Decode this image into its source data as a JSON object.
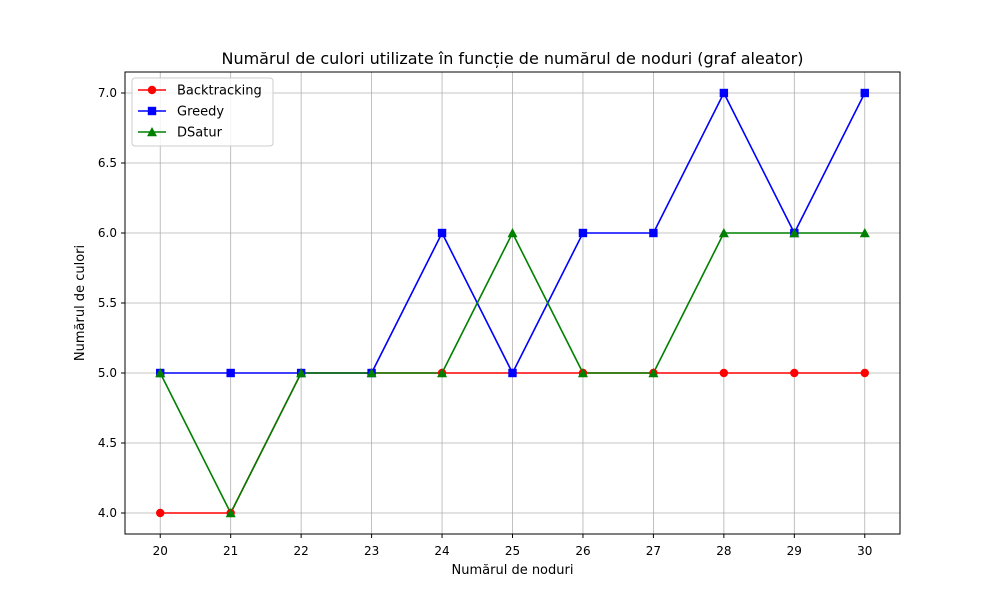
{
  "chart_data": {
    "type": "line",
    "title": "Numărul de culori utilizate în funcție de numărul de noduri (graf aleator)",
    "xlabel": "Numărul de noduri",
    "ylabel": "Numărul de culori",
    "x": [
      20,
      21,
      22,
      23,
      24,
      25,
      26,
      27,
      28,
      29,
      30
    ],
    "xlim": [
      19.5,
      30.5
    ],
    "ylim": [
      3.85,
      7.15
    ],
    "xticks": [
      "20",
      "21",
      "22",
      "23",
      "24",
      "25",
      "26",
      "27",
      "28",
      "29",
      "30"
    ],
    "yticks": [
      "4.0",
      "4.5",
      "5.0",
      "5.5",
      "6.0",
      "6.5",
      "7.0"
    ],
    "grid": true,
    "legend_position": "top-left",
    "series": [
      {
        "name": "Backtracking",
        "color": "#ff0000",
        "marker": "circle",
        "values": [
          4,
          4,
          5,
          5,
          5,
          5,
          5,
          5,
          5,
          5,
          5
        ]
      },
      {
        "name": "Greedy",
        "color": "#0000ff",
        "marker": "square",
        "values": [
          5,
          5,
          5,
          5,
          6,
          5,
          6,
          6,
          7,
          6,
          7
        ]
      },
      {
        "name": "DSatur",
        "color": "#008000",
        "marker": "triangle",
        "values": [
          5,
          4,
          5,
          5,
          5,
          6,
          5,
          5,
          6,
          6,
          6
        ]
      }
    ]
  }
}
